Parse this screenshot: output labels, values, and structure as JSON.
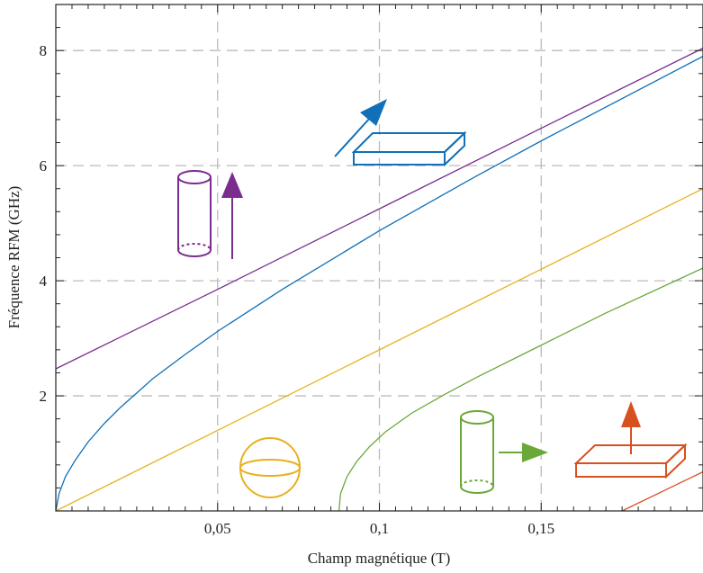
{
  "chart_data": {
    "type": "line",
    "title": "",
    "xlabel": "Champ magnétique (T)",
    "ylabel": "Fréquence RFM (GHz)",
    "xlim": [
      0,
      0.2
    ],
    "ylim": [
      0,
      8.8
    ],
    "grid": true,
    "xticks": [
      {
        "value": 0.05,
        "label": "0,05"
      },
      {
        "value": 0.1,
        "label": "0,1"
      },
      {
        "value": 0.15,
        "label": "0,15"
      }
    ],
    "yticks": [
      {
        "value": 2,
        "label": "2"
      },
      {
        "value": 4,
        "label": "4"
      },
      {
        "value": 6,
        "label": "6"
      },
      {
        "value": 8,
        "label": "8"
      }
    ],
    "series": [
      {
        "color": "#7a2d8f",
        "x": [
          0,
          0.05,
          0.1,
          0.15,
          0.2
        ],
        "y": [
          2.47,
          3.85,
          5.25,
          6.65,
          8.04
        ]
      },
      {
        "color": "#1070b8",
        "x": [
          0,
          0.001,
          0.003,
          0.006,
          0.01,
          0.015,
          0.02,
          0.03,
          0.04,
          0.05,
          0.07,
          0.1,
          0.13,
          0.15,
          0.2
        ],
        "y": [
          0,
          0.3,
          0.6,
          0.88,
          1.2,
          1.52,
          1.8,
          2.3,
          2.72,
          3.12,
          3.85,
          4.87,
          5.82,
          6.43,
          7.9
        ]
      },
      {
        "color": "#e8b020",
        "x": [
          0,
          0.05,
          0.1,
          0.15,
          0.2
        ],
        "y": [
          0,
          1.4,
          2.8,
          4.2,
          5.6
        ]
      },
      {
        "color": "#6aa838",
        "x": [
          0.0875,
          0.088,
          0.09,
          0.093,
          0.097,
          0.102,
          0.11,
          0.12,
          0.13,
          0.15,
          0.17,
          0.2
        ],
        "y": [
          0,
          0.3,
          0.6,
          0.86,
          1.12,
          1.38,
          1.7,
          2.02,
          2.32,
          2.88,
          3.44,
          4.22
        ]
      },
      {
        "color": "#d85020",
        "x": [
          0.175,
          0.2
        ],
        "y": [
          0,
          0.68
        ]
      }
    ],
    "icons": [
      {
        "name": "cylinder-vertical-field-icon",
        "color": "#7a2d8f"
      },
      {
        "name": "thin-film-inplane-field-icon",
        "color": "#1070b8"
      },
      {
        "name": "sphere-icon",
        "color": "#e8b020"
      },
      {
        "name": "cylinder-perpendicular-field-icon",
        "color": "#6aa838"
      },
      {
        "name": "thin-film-perpendicular-field-icon",
        "color": "#d85020"
      }
    ]
  }
}
